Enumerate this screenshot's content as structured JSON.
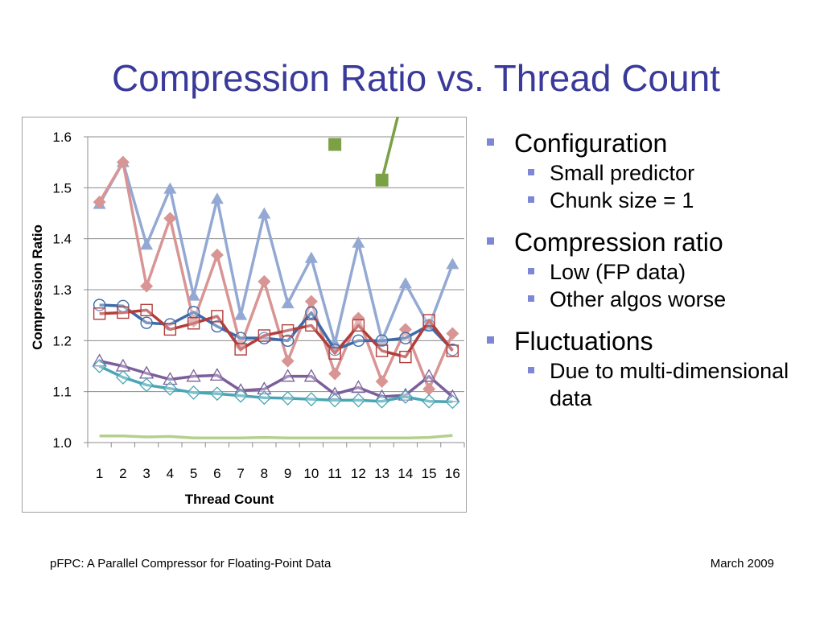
{
  "title": "Compression Ratio vs. Thread Count",
  "bullets": [
    {
      "text": "Configuration",
      "level": 1
    },
    {
      "text": "Small predictor",
      "level": 2
    },
    {
      "text": "Chunk size = 1",
      "level": 2
    },
    {
      "text": "Compression ratio",
      "level": 1
    },
    {
      "text": "Low (FP data)",
      "level": 2
    },
    {
      "text": "Other algos worse",
      "level": 2
    },
    {
      "text": "Fluctuations",
      "level": 1
    },
    {
      "text": "Due to multi-dimensional data",
      "level": 2
    }
  ],
  "footer": {
    "left": "pFPC: A Parallel Compressor for Floating-Point Data",
    "right": "March 2009"
  },
  "chart_data": {
    "type": "line",
    "title": "",
    "xlabel": "Thread Count",
    "ylabel": "Compression Ratio",
    "ylim": [
      1.0,
      1.6
    ],
    "yticks": [
      "1.0",
      "1.1",
      "1.2",
      "1.3",
      "1.4",
      "1.5",
      "1.6"
    ],
    "x": [
      1,
      2,
      3,
      4,
      5,
      6,
      7,
      8,
      9,
      10,
      11,
      12,
      13,
      14,
      15,
      16
    ],
    "grid": "horizontal",
    "legend": "none",
    "series": [
      {
        "color": "#93a9d3",
        "marker": "triangle-filled",
        "values": [
          1.468,
          1.55,
          1.388,
          1.498,
          1.288,
          1.478,
          1.25,
          1.449,
          1.273,
          1.362,
          1.195,
          1.392,
          1.2,
          1.312,
          1.228,
          1.35
        ]
      },
      {
        "color": "#d89594",
        "marker": "diamond-filled",
        "values": [
          1.472,
          1.55,
          1.307,
          1.44,
          1.238,
          1.368,
          1.19,
          1.316,
          1.16,
          1.277,
          1.135,
          1.244,
          1.12,
          1.222,
          1.105,
          1.214
        ]
      },
      {
        "color": "#3f6aa8",
        "marker": "circle-open",
        "values": [
          1.27,
          1.268,
          1.235,
          1.232,
          1.256,
          1.228,
          1.205,
          1.205,
          1.2,
          1.255,
          1.182,
          1.2,
          1.2,
          1.205,
          1.23,
          1.182
        ]
      },
      {
        "color": "#b23e3c",
        "marker": "square-open",
        "values": [
          1.253,
          1.255,
          1.26,
          1.222,
          1.234,
          1.248,
          1.183,
          1.21,
          1.22,
          1.23,
          1.175,
          1.23,
          1.18,
          1.168,
          1.24,
          1.18
        ]
      },
      {
        "color": "#7b5f9b",
        "marker": "triangle-open",
        "values": [
          1.16,
          1.15,
          1.136,
          1.124,
          1.13,
          1.132,
          1.102,
          1.105,
          1.13,
          1.13,
          1.095,
          1.108,
          1.09,
          1.093,
          1.13,
          1.09
        ]
      },
      {
        "color": "#4aa5b5",
        "marker": "diamond-open",
        "values": [
          1.15,
          1.128,
          1.113,
          1.106,
          1.098,
          1.096,
          1.092,
          1.088,
          1.087,
          1.085,
          1.083,
          1.083,
          1.081,
          1.09,
          1.081,
          1.08
        ]
      },
      {
        "color": "#b5cf8f",
        "marker": "none",
        "values": [
          1.013,
          1.013,
          1.011,
          1.012,
          1.009,
          1.009,
          1.009,
          1.01,
          1.009,
          1.009,
          1.009,
          1.009,
          1.009,
          1.009,
          1.01,
          1.014
        ]
      },
      {
        "color": "#7ca045",
        "marker": "square-filled",
        "values": [
          null,
          null,
          null,
          null,
          null,
          null,
          null,
          null,
          null,
          null,
          1.585,
          null,
          1.515,
          1.7,
          null,
          null
        ]
      }
    ]
  }
}
